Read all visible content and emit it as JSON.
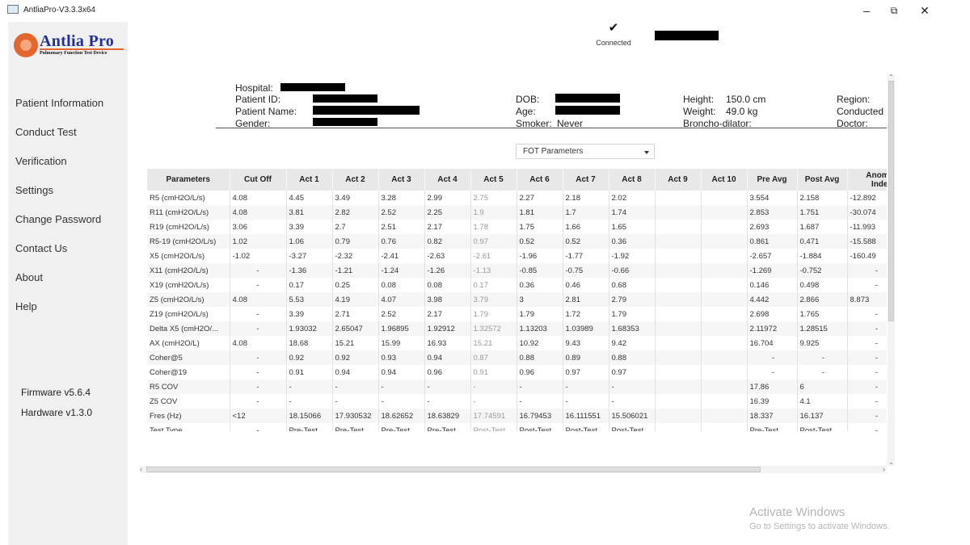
{
  "window": {
    "title": "AntliaPro-V3.3.3x64",
    "minimize": "–",
    "restore": "⧉",
    "close": "✕"
  },
  "logo": {
    "name": "Antlia Pro",
    "tagline": "Pulmonary Function Test Device"
  },
  "sidebar": {
    "items": [
      {
        "label": "Patient Information"
      },
      {
        "label": "Conduct Test"
      },
      {
        "label": "Verification"
      },
      {
        "label": "Settings"
      },
      {
        "label": "Change Password"
      },
      {
        "label": "Contact Us"
      },
      {
        "label": "About"
      },
      {
        "label": "Help"
      }
    ],
    "firmware": "Firmware v5.6.4",
    "hardware": "Hardware v1.3.0"
  },
  "status": {
    "icon": "check-icon",
    "label": "Connected"
  },
  "patient": {
    "hospital_label": "Hospital:",
    "patient_id_label": "Patient ID:",
    "patient_name_label": "Patient Name:",
    "gender_label": "Gender:",
    "dob_label": "DOB:",
    "age_label": "Age:",
    "smoker_label": "Smoker:",
    "smoker_value": "Never",
    "height_label": "Height:",
    "height_value": "150.0 cm",
    "weight_label": "Weight:",
    "weight_value": "49.0 kg",
    "broncho_label": "Broncho-dilator:",
    "region_label": "Region:",
    "conducted_label": "Conducted",
    "doctor_label": "Doctor:"
  },
  "selector": {
    "value": "FOT Parameters"
  },
  "table": {
    "headers": [
      "Parameters",
      "Cut Off",
      "Act 1",
      "Act 2",
      "Act 3",
      "Act 4",
      "Act 5",
      "Act 6",
      "Act 7",
      "Act 8",
      "Act 9",
      "Act 10",
      "Pre Avg",
      "Post Avg",
      "Anomaly Index P"
    ],
    "rows": [
      [
        "R5 (cmH2O/L/s)",
        "4.08",
        "4.45",
        "3.49",
        "3.28",
        "2.99",
        "2.75",
        "2.27",
        "2.18",
        "2.02",
        "",
        "",
        "3.554",
        "2.158",
        "-12.892"
      ],
      [
        "R11 (cmH2O/L/s)",
        "4.08",
        "3.81",
        "2.82",
        "2.52",
        "2.25",
        "1.9",
        "1.81",
        "1.7",
        "1.74",
        "",
        "",
        "2.853",
        "1.751",
        "-30.074"
      ],
      [
        "R19 (cmH2O/L/s)",
        "3.06",
        "3.39",
        "2.7",
        "2.51",
        "2.17",
        "1.78",
        "1.75",
        "1.66",
        "1.65",
        "",
        "",
        "2.693",
        "1.687",
        "-11.993"
      ],
      [
        "R5-19 (cmH2O/L/s)",
        "1.02",
        "1.06",
        "0.79",
        "0.76",
        "0.82",
        "0.97",
        "0.52",
        "0.52",
        "0.36",
        "",
        "",
        "0.861",
        "0.471",
        "-15.588"
      ],
      [
        "X5 (cmH2O/L/s)",
        "-1.02",
        "-3.27",
        "-2.32",
        "-2.41",
        "-2.63",
        "-2.61",
        "-1.96",
        "-1.77",
        "-1.92",
        "",
        "",
        "-2.657",
        "-1.884",
        "-160.49"
      ],
      [
        "X11 (cmH2O/L/s)",
        "-",
        "-1.36",
        "-1.21",
        "-1.24",
        "-1.26",
        "-1.13",
        "-0.85",
        "-0.75",
        "-0.66",
        "",
        "",
        "-1.269",
        "-0.752",
        "-"
      ],
      [
        "X19 (cmH2O/L/s)",
        "-",
        "0.17",
        "0.25",
        "0.08",
        "0.08",
        "0.17",
        "0.36",
        "0.46",
        "0.68",
        "",
        "",
        "0.146",
        "0.498",
        "-"
      ],
      [
        "Z5 (cmH2O/L/s)",
        "4.08",
        "5.53",
        "4.19",
        "4.07",
        "3.98",
        "3.79",
        "3",
        "2.81",
        "2.79",
        "",
        "",
        "4.442",
        "2.866",
        "8.873"
      ],
      [
        "Z19 (cmH2O/L/s)",
        "-",
        "3.39",
        "2.71",
        "2.52",
        "2.17",
        "1.79",
        "1.79",
        "1.72",
        "1.79",
        "",
        "",
        "2.698",
        "1.765",
        "-"
      ],
      [
        "Delta X5 (cmH2O/...",
        "-",
        "1.93032",
        "2.65047",
        "1.96895",
        "1.92912",
        "1.32572",
        "1.13203",
        "1.03989",
        "1.68353",
        "",
        "",
        "2.11972",
        "1.28515",
        "-"
      ],
      [
        "AX (cmH2O/L)",
        "4.08",
        "18.68",
        "15.21",
        "15.99",
        "16.93",
        "15.21",
        "10.92",
        "9.43",
        "9.42",
        "",
        "",
        "16.704",
        "9.925",
        "-"
      ],
      [
        "Coher@5",
        "-",
        "0.92",
        "0.92",
        "0.93",
        "0.94",
        "0.87",
        "0.88",
        "0.89",
        "0.88",
        "",
        "",
        "-",
        "-",
        "-"
      ],
      [
        "Coher@19",
        "-",
        "0.91",
        "0.94",
        "0.94",
        "0.96",
        "0.91",
        "0.96",
        "0.97",
        "0.97",
        "",
        "",
        "-",
        "-",
        "-"
      ],
      [
        "R5 COV",
        "-",
        "-",
        "-",
        "-",
        "-",
        "-",
        "-",
        "-",
        "-",
        "",
        "",
        "17.86",
        "6",
        "-"
      ],
      [
        "Z5 COV",
        "-",
        "-",
        "-",
        "-",
        "-",
        "-",
        "-",
        "-",
        "-",
        "",
        "",
        "16.39",
        "4.1",
        "-"
      ],
      [
        "Fres (Hz)",
        "<12",
        "18.15066",
        "17.930532",
        "18.62652",
        "18.63829",
        "17.74591",
        "16.79453",
        "16.111551",
        "15.506021",
        "",
        "",
        "18.337",
        "16.137",
        "-"
      ],
      [
        "Test Type",
        "-",
        "Pre-Test",
        "Pre-Test",
        "Pre-Test",
        "Pre-Test",
        "Post-Test",
        "Post-Test",
        "Post-Test",
        "Post-Test",
        "",
        "",
        "Pre-Test",
        "Post-Test",
        "-"
      ]
    ]
  },
  "watermark": {
    "title": "Activate Windows",
    "subtitle": "Go to Settings to activate Windows."
  }
}
